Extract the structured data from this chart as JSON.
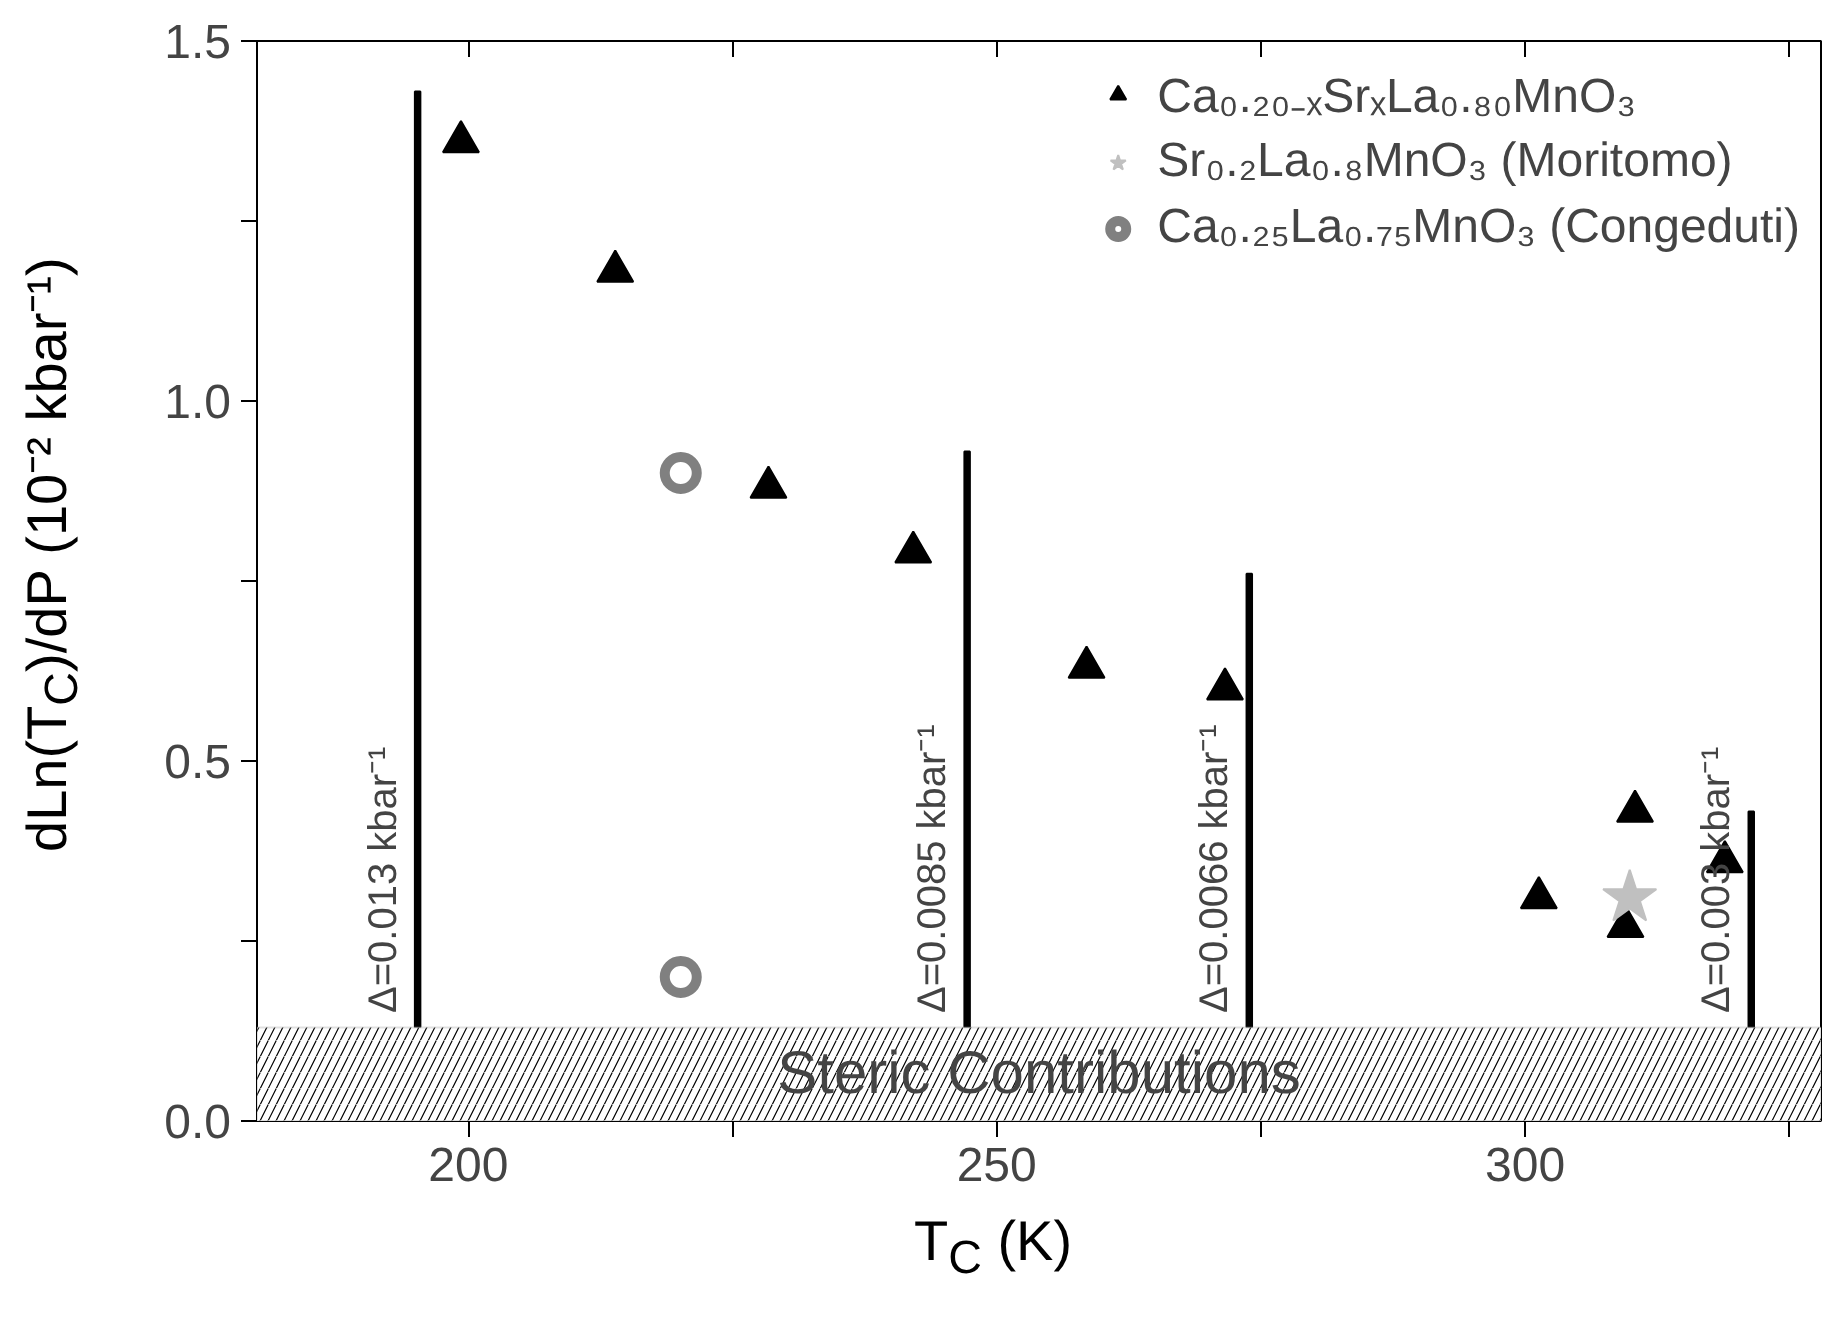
{
  "chart_data": {
    "type": "scatter",
    "xlabel": "T$_{C}$ (K)",
    "ylabel": "dLn(T$_{C}$)/dP  (10⁻² kbar⁻¹)",
    "xlim": [
      180,
      328
    ],
    "ylim": [
      0,
      1.5
    ],
    "xticks": [
      200,
      {
        "value": 225,
        "label": null
      },
      250,
      {
        "value": 275,
        "label": null
      },
      300,
      {
        "value": 325,
        "label": null
      }
    ],
    "yticks": [
      {
        "value": 0,
        "label": "0.0"
      },
      {
        "value": 0.25,
        "label": null
      },
      0.5,
      {
        "value": 0.75,
        "label": null
      },
      {
        "value": 1,
        "label": "1.0"
      },
      {
        "value": 1.25,
        "label": null
      },
      1.5
    ],
    "grid": false,
    "legend": "top right",
    "series": [
      {
        "name": "Ca₀.₂₀₋ₓSrₓLa₀.₈₀MnO₃",
        "color": "#000000",
        "marker": "triangle",
        "x": [
          199.3,
          213.9,
          228.4,
          242.1,
          258.5,
          271.6,
          301.3,
          309.5,
          310.4,
          318.9
        ],
        "values": [
          1.36,
          1.18,
          0.88,
          0.79,
          0.63,
          0.6,
          0.31,
          0.27,
          0.43,
          0.36
        ]
      },
      {
        "name": "Sr₀.₂La₀.₈MnO₃ (Moritomo)",
        "color": "#c0c0c0",
        "marker": "star",
        "x": [
          309.9
        ],
        "values": [
          0.31
        ]
      },
      {
        "name": "Ca₀.₂₅La₀.₇₅MnO₃ (Congeduti)",
        "color": "#808080",
        "marker": "circle",
        "x": [
          220.1,
          220.1
        ],
        "values": [
          0.9,
          0.2
        ]
      },
      {
        "type": "bar",
        "color": "#000000",
        "x": [
          195.2,
          247.2,
          273.9,
          321.4
        ],
        "base": [
          0.13,
          0.13,
          0.13,
          0.13
        ],
        "values": [
          1.3,
          0.8,
          0.63,
          0.3
        ]
      }
    ],
    "bands": [
      {
        "axis": "y",
        "from": 0,
        "to": 0.13,
        "label": "Steric Contributions"
      }
    ],
    "annotations": [
      {
        "text": "Δ=0.013 kbar⁻¹",
        "x": 195.2,
        "y": 0.15
      },
      {
        "text": "Δ=0.0085 kbar⁻¹",
        "x": 247.2,
        "y": 0.15
      },
      {
        "text": "Δ=0.0066 kbar⁻¹",
        "x": 273.9,
        "y": 0.15
      },
      {
        "text": "Δ=0.003 kbar⁻¹",
        "x": 321.4,
        "y": 0.15
      }
    ]
  }
}
